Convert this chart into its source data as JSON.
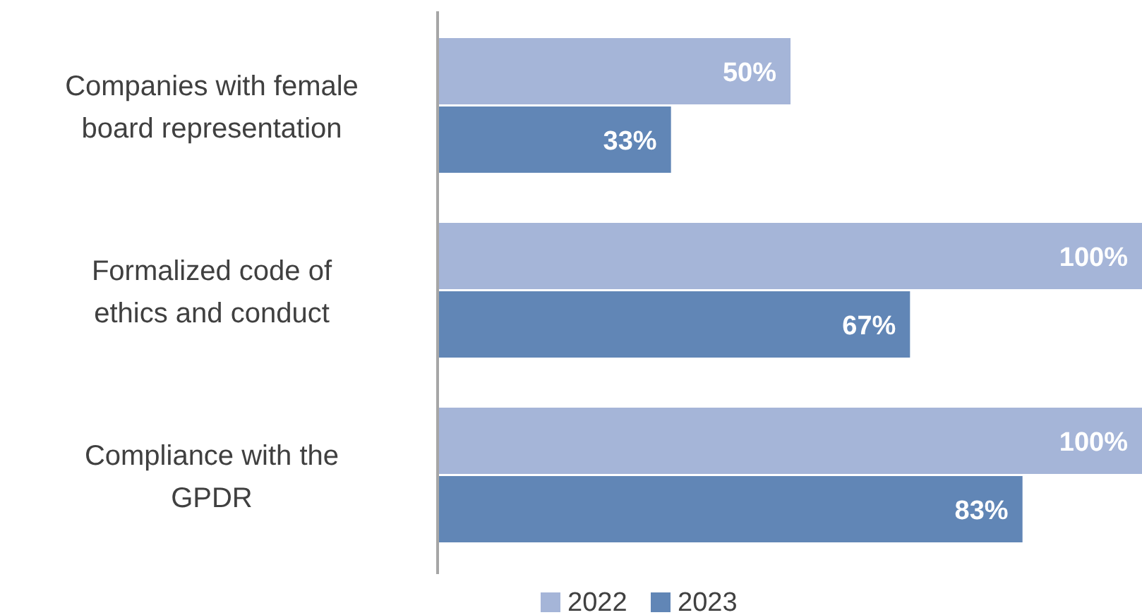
{
  "chart_data": {
    "type": "bar",
    "orientation": "horizontal",
    "categories": [
      "Companies with female board representation",
      "Formalized code of ethics and conduct",
      "Compliance with the GPDR"
    ],
    "series": [
      {
        "name": "2022",
        "color": "#a5b5d8",
        "values": [
          50,
          100,
          100
        ],
        "value_labels": [
          "50%",
          "100%",
          "100%"
        ]
      },
      {
        "name": "2023",
        "color": "#6186b6",
        "values": [
          33,
          67,
          83
        ],
        "value_labels": [
          "33%",
          "67%",
          "83%"
        ]
      }
    ],
    "legend": "bottom"
  }
}
